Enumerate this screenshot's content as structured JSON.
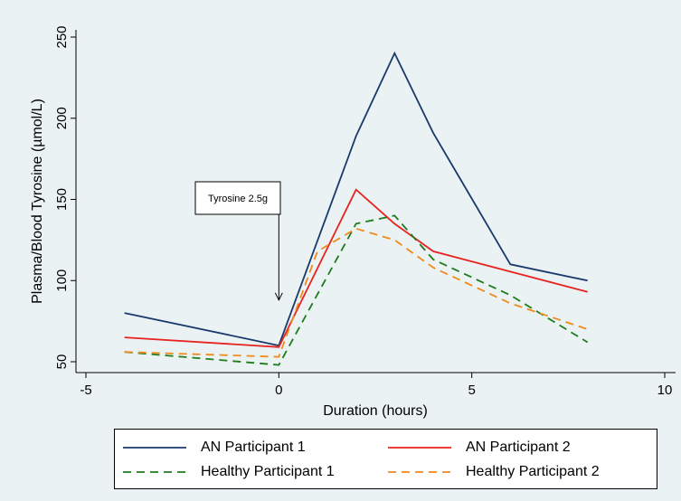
{
  "chart_data": {
    "type": "line",
    "xlabel": "Duration (hours)",
    "ylabel": "Plasma/Blood Tyrosine (µmol/L)",
    "xlim": [
      -5,
      10
    ],
    "ylim": [
      45,
      255
    ],
    "x_ticks": [
      "-5",
      "0",
      "5",
      "10"
    ],
    "y_ticks": [
      "50",
      "100",
      "150",
      "200",
      "250"
    ],
    "grid": false,
    "legend_position": "bottom",
    "series": [
      {
        "name": "AN Participant 1",
        "color": "#1a3a6b",
        "dash": "solid",
        "x": [
          -4,
          0,
          2,
          3,
          4,
          6,
          8
        ],
        "y": [
          80,
          60,
          189,
          240,
          191,
          110,
          100
        ]
      },
      {
        "name": "AN Participant 2",
        "color": "#e8231f",
        "dash": "solid",
        "x": [
          -4,
          0,
          2,
          3,
          4,
          8
        ],
        "y": [
          65,
          59,
          156,
          135,
          118,
          93
        ]
      },
      {
        "name": "Healthy Participant 1",
        "color": "#1e7b1e",
        "dash": "dashed",
        "x": [
          -4,
          0,
          2,
          3,
          4,
          6,
          8
        ],
        "y": [
          56,
          48,
          135,
          140,
          113,
          91,
          62
        ]
      },
      {
        "name": "Healthy Participant 2",
        "color": "#f08a1c",
        "dash": "dashed",
        "x": [
          -4,
          0,
          1,
          2,
          3,
          4,
          6,
          8
        ],
        "y": [
          56,
          53,
          118,
          132,
          125,
          108,
          86,
          70
        ]
      }
    ],
    "annotation": {
      "text": "Tyrosine 2.5g",
      "arrow_x": 0,
      "arrow_y_end": 88
    }
  }
}
